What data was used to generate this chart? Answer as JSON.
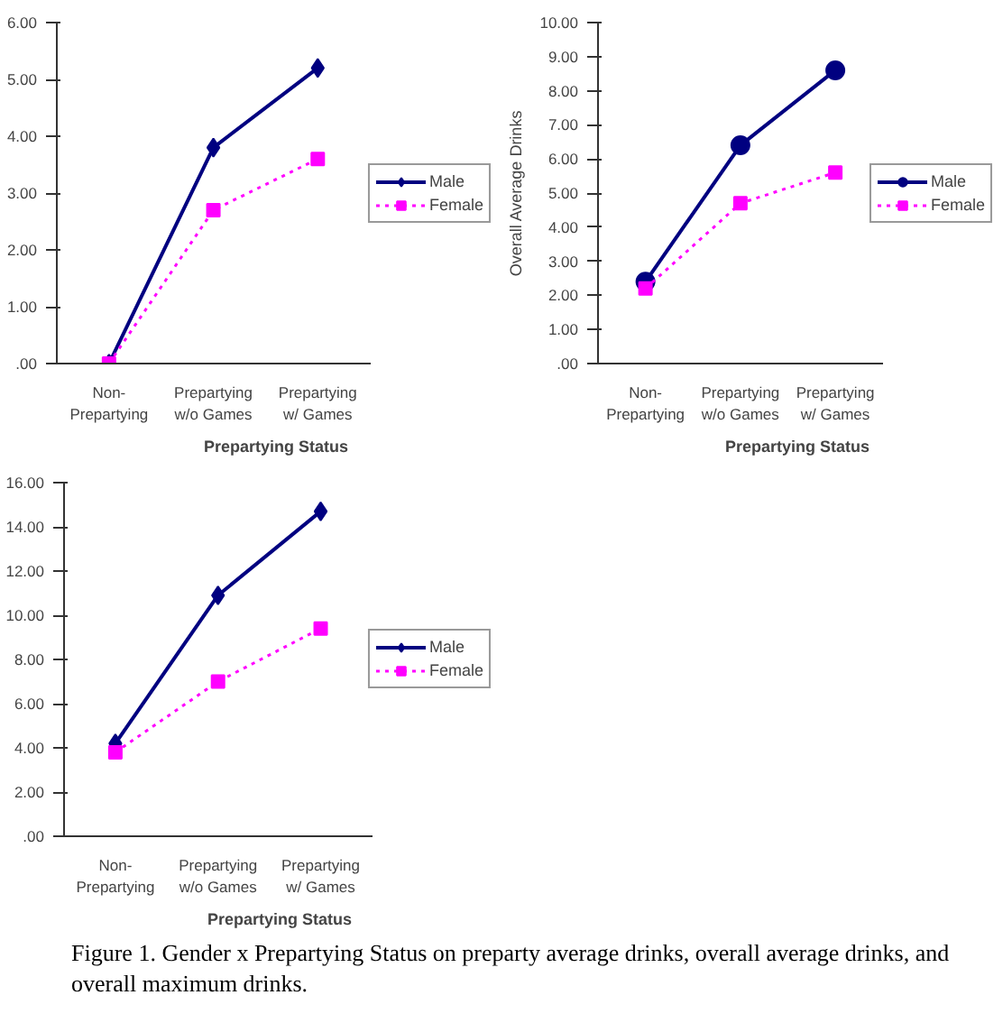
{
  "chart_data": [
    {
      "type": "line",
      "categories": [
        "Non-\nPrepartying",
        "Prepartying\nw/o Games",
        "Prepartying\nw/ Games"
      ],
      "xlabel": "Prepartying Status",
      "series": [
        {
          "name": "Male",
          "color": "#000080",
          "values": [
            0,
            3.8,
            5.2
          ],
          "marker": "diamond",
          "line_style": "solid"
        },
        {
          "name": "Female",
          "color": "#ff00ff",
          "values": [
            0,
            2.7,
            3.6
          ],
          "marker": "square",
          "line_style": "dotted"
        }
      ],
      "ylim": [
        0,
        6
      ],
      "yticks": [
        {
          "value": 0,
          "label": ".00"
        },
        {
          "value": 1,
          "label": "1.00"
        },
        {
          "value": 2,
          "label": "2.00"
        },
        {
          "value": 3,
          "label": "3.00"
        },
        {
          "value": 4,
          "label": "4.00"
        },
        {
          "value": 5,
          "label": "5.00"
        },
        {
          "value": 6,
          "label": "6.00"
        }
      ],
      "grid": false,
      "legend": "right"
    },
    {
      "type": "line",
      "categories": [
        "Non-\nPrepartying",
        "Prepartying\nw/o Games",
        "Prepartying\nw/ Games"
      ],
      "xlabel": "Prepartying Status",
      "ylabel": "Overall Average Drinks",
      "series": [
        {
          "name": "Male",
          "color": "#000080",
          "values": [
            2.4,
            6.4,
            8.6
          ],
          "marker": "circle",
          "line_style": "solid"
        },
        {
          "name": "Female",
          "color": "#ff00ff",
          "values": [
            2.2,
            4.7,
            5.6
          ],
          "marker": "square",
          "line_style": "dotted"
        }
      ],
      "ylim": [
        0,
        10
      ],
      "yticks": [
        {
          "value": 0,
          "label": ".00"
        },
        {
          "value": 1,
          "label": "1.00"
        },
        {
          "value": 2,
          "label": "2.00"
        },
        {
          "value": 3,
          "label": "3.00"
        },
        {
          "value": 4,
          "label": "4.00"
        },
        {
          "value": 5,
          "label": "5.00"
        },
        {
          "value": 6,
          "label": "6.00"
        },
        {
          "value": 7,
          "label": "7.00"
        },
        {
          "value": 8,
          "label": "8.00"
        },
        {
          "value": 9,
          "label": "9.00"
        },
        {
          "value": 10,
          "label": "10.00"
        }
      ],
      "grid": false,
      "legend": "right"
    },
    {
      "type": "line",
      "categories": [
        "Non-\nPrepartying",
        "Prepartying\nw/o Games",
        "Prepartying\nw/ Games"
      ],
      "xlabel": "Prepartying Status",
      "series": [
        {
          "name": "Male",
          "color": "#000080",
          "values": [
            4.2,
            10.9,
            14.7
          ],
          "marker": "diamond",
          "line_style": "solid"
        },
        {
          "name": "Female",
          "color": "#ff00ff",
          "values": [
            3.8,
            7.0,
            9.4
          ],
          "marker": "square",
          "line_style": "dotted"
        }
      ],
      "ylim": [
        0,
        16
      ],
      "yticks": [
        {
          "value": 0,
          "label": ".00"
        },
        {
          "value": 2,
          "label": "2.00"
        },
        {
          "value": 4,
          "label": "4.00"
        },
        {
          "value": 6,
          "label": "6.00"
        },
        {
          "value": 8,
          "label": "8.00"
        },
        {
          "value": 10,
          "label": "10.00"
        },
        {
          "value": 12,
          "label": "12.00"
        },
        {
          "value": 14,
          "label": "14.00"
        },
        {
          "value": 16,
          "label": "16.00"
        }
      ],
      "grid": false,
      "legend": "right",
      "annotations": [
        "Figure 1. Gender x Prepartying Status on preparty average drinks, overall average drinks, and",
        "overall maximum drinks."
      ]
    }
  ]
}
